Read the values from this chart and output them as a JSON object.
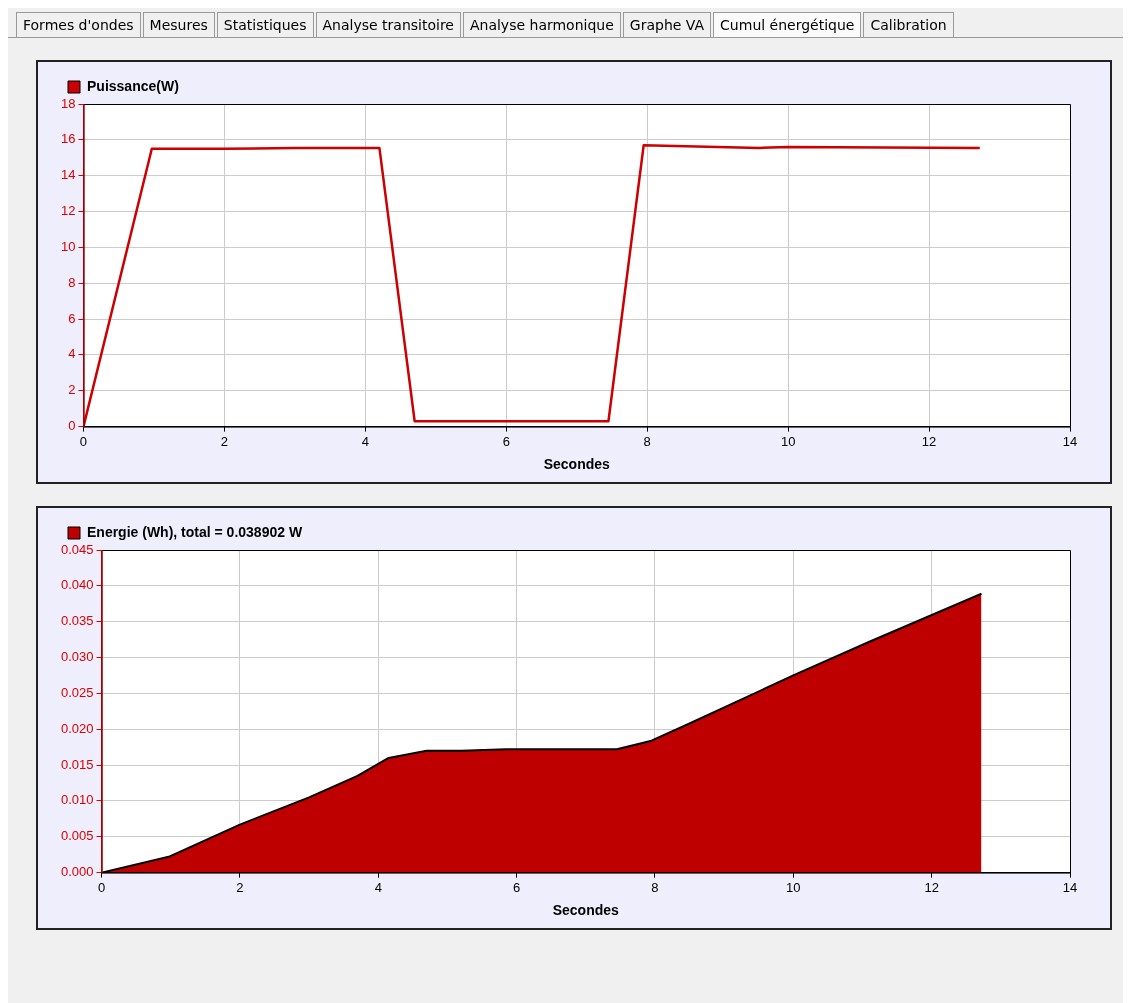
{
  "chart_data": [
    {
      "type": "other",
      "annotations": [
        "Formes d'ondes",
        "Mesures",
        "Statistiques",
        "Analyse transitoire",
        "Analyse harmonique",
        "Graphe VA",
        "Cumul énergétique",
        "Calibration"
      ]
    },
    {
      "type": "line",
      "xlabel": "Secondes",
      "legend": "top left",
      "grid": true,
      "marker": "none",
      "line_style": "solid",
      "xlim": [
        0,
        14
      ],
      "xticks": [
        0,
        2,
        4,
        6,
        8,
        10,
        12,
        14
      ],
      "ylim": [
        0,
        18
      ],
      "yticks": [
        0,
        2,
        4,
        6,
        8,
        10,
        12,
        14,
        16,
        18
      ],
      "series": [
        {
          "name": "Puissance(W)",
          "color": "#cc0000",
          "x": [
            0,
            0.97,
            2,
            3,
            4.2,
            4.7,
            7.45,
            7.95,
            9.6,
            10,
            12.72
          ],
          "values": [
            0,
            15.5,
            15.5,
            15.55,
            15.55,
            0.3,
            0.3,
            15.7,
            15.55,
            15.6,
            15.55
          ]
        }
      ]
    },
    {
      "type": "area",
      "xlabel": "Secondes",
      "legend": "top left",
      "grid": true,
      "marker": "none",
      "xlim": [
        0,
        14
      ],
      "xticks": [
        0,
        2,
        4,
        6,
        8,
        10,
        12,
        14
      ],
      "ylim": [
        0,
        0.045
      ],
      "yticks": [
        {
          "value": 0,
          "label": "0.000"
        },
        {
          "value": 0.005,
          "label": "0.005"
        },
        {
          "value": 0.01,
          "label": "0.010"
        },
        {
          "value": 0.015,
          "label": "0.015"
        },
        {
          "value": 0.02,
          "label": "0.020"
        },
        {
          "value": 0.025,
          "label": "0.025"
        },
        {
          "value": 0.03,
          "label": "0.030"
        },
        {
          "value": 0.035,
          "label": "0.035"
        },
        {
          "value": 0.04,
          "label": "0.040"
        },
        {
          "value": 0.045,
          "label": "0.045"
        }
      ],
      "series": [
        {
          "name": "Energie (Wh), total = 0.038902 W",
          "color": "#bf0000",
          "x": [
            0,
            0.97,
            2,
            3,
            3.7,
            4.15,
            4.7,
            5.2,
            5.85,
            7.45,
            7.95,
            8.5,
            10,
            11.1,
            12.72
          ],
          "values": [
            0,
            0.0022,
            0.0067,
            0.0105,
            0.0135,
            0.016,
            0.017,
            0.017,
            0.0172,
            0.0172,
            0.0184,
            0.0208,
            0.0275,
            0.0322,
            0.0389
          ]
        }
      ]
    }
  ]
}
